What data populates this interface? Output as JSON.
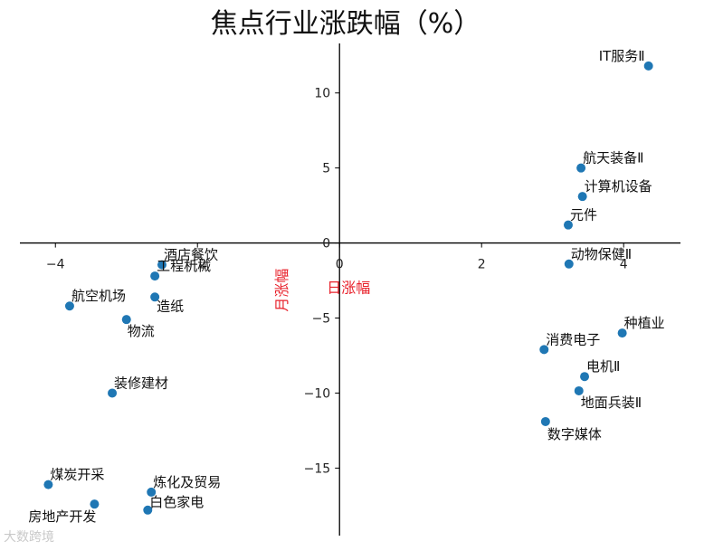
{
  "chart_data": {
    "type": "scatter",
    "title": "焦点行业涨跌幅（%）",
    "xlabel": "日涨幅",
    "ylabel": "月涨幅",
    "xlim": [
      -4.5,
      4.8
    ],
    "ylim": [
      -19.5,
      13.3
    ],
    "xticks": [
      -4,
      -2,
      0,
      2,
      4
    ],
    "yticks": [
      -15,
      -10,
      -5,
      0,
      5,
      10
    ],
    "grid": false,
    "marker_color": "#1f77b4",
    "label_color": "#e8202a",
    "points": [
      {
        "label": "IT服务Ⅱ",
        "x": 4.35,
        "y": 11.8
      },
      {
        "label": "航天装备Ⅱ",
        "x": 3.4,
        "y": 5.0
      },
      {
        "label": "计算机设备",
        "x": 3.42,
        "y": 3.1
      },
      {
        "label": "元件",
        "x": 3.22,
        "y": 1.2
      },
      {
        "label": "动物保健Ⅱ",
        "x": 3.23,
        "y": -1.4
      },
      {
        "label": "种植业",
        "x": 3.98,
        "y": -6.0
      },
      {
        "label": "消费电子",
        "x": 2.88,
        "y": -7.1
      },
      {
        "label": "电机Ⅱ",
        "x": 3.45,
        "y": -8.9
      },
      {
        "label": "地面兵装Ⅱ",
        "x": 3.37,
        "y": -9.85
      },
      {
        "label": "数字媒体",
        "x": 2.9,
        "y": -11.9
      },
      {
        "label": "酒店餐饮",
        "x": -2.5,
        "y": -1.45
      },
      {
        "label": "工程机械",
        "x": -2.6,
        "y": -2.2
      },
      {
        "label": "造纸",
        "x": -2.6,
        "y": -3.6
      },
      {
        "label": "航空机场",
        "x": -3.8,
        "y": -4.2
      },
      {
        "label": "物流",
        "x": -3.0,
        "y": -5.1
      },
      {
        "label": "装修建材",
        "x": -3.2,
        "y": -10.0
      },
      {
        "label": "煤炭开采",
        "x": -4.1,
        "y": -16.1
      },
      {
        "label": "炼化及贸易",
        "x": -2.65,
        "y": -16.6
      },
      {
        "label": "房地产开发",
        "x": -3.45,
        "y": -17.4
      },
      {
        "label": "白色家电",
        "x": -2.7,
        "y": -17.8
      }
    ]
  },
  "watermark": "大数跨境"
}
